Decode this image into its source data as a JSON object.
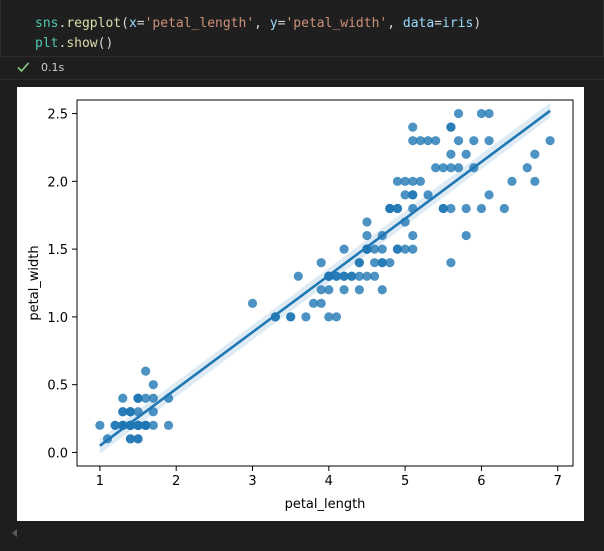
{
  "code_cell": {
    "line1": {
      "obj": "sns",
      "dot": ".",
      "fn": "regplot",
      "open": "(",
      "p1": "x",
      "eq1": "=",
      "v1": "'petal_length'",
      "sep1": ", ",
      "p2": "y",
      "eq2": "=",
      "v2": "'petal_width'",
      "sep2": ", ",
      "p3": "data",
      "eq3": "=",
      "v3": "iris",
      "close": ")"
    },
    "line2": {
      "obj": "plt",
      "dot": ".",
      "fn": "show",
      "call": "()"
    }
  },
  "status": {
    "icon": "check-icon",
    "exec_time": "0.1s",
    "success_color": "#89d185"
  },
  "chart_data": {
    "type": "scatter",
    "title": "",
    "xlabel": "petal_length",
    "ylabel": "petal_width",
    "xlim": [
      0.7,
      7.2
    ],
    "ylim": [
      -0.1,
      2.6
    ],
    "xticks": [
      1,
      2,
      3,
      4,
      5,
      6,
      7
    ],
    "yticks": [
      0.0,
      0.5,
      1.0,
      1.5,
      2.0,
      2.5
    ],
    "ytick_labels": [
      "0.0",
      "0.5",
      "1.0",
      "1.5",
      "2.0",
      "2.5"
    ],
    "grid": false,
    "point_color": "#1f77b4",
    "regression": {
      "x": [
        1.0,
        6.9
      ],
      "y": [
        0.05,
        2.52
      ]
    },
    "points": [
      [
        1.4,
        0.2
      ],
      [
        1.4,
        0.2
      ],
      [
        1.3,
        0.2
      ],
      [
        1.5,
        0.2
      ],
      [
        1.4,
        0.2
      ],
      [
        1.7,
        0.4
      ],
      [
        1.4,
        0.3
      ],
      [
        1.5,
        0.2
      ],
      [
        1.4,
        0.2
      ],
      [
        1.5,
        0.1
      ],
      [
        1.5,
        0.2
      ],
      [
        1.6,
        0.2
      ],
      [
        1.4,
        0.1
      ],
      [
        1.1,
        0.1
      ],
      [
        1.2,
        0.2
      ],
      [
        1.5,
        0.4
      ],
      [
        1.3,
        0.4
      ],
      [
        1.4,
        0.3
      ],
      [
        1.7,
        0.3
      ],
      [
        1.5,
        0.3
      ],
      [
        1.7,
        0.2
      ],
      [
        1.5,
        0.4
      ],
      [
        1.0,
        0.2
      ],
      [
        1.7,
        0.5
      ],
      [
        1.9,
        0.2
      ],
      [
        1.6,
        0.2
      ],
      [
        1.6,
        0.4
      ],
      [
        1.5,
        0.2
      ],
      [
        1.4,
        0.2
      ],
      [
        1.6,
        0.2
      ],
      [
        1.6,
        0.2
      ],
      [
        1.5,
        0.4
      ],
      [
        1.5,
        0.1
      ],
      [
        1.4,
        0.2
      ],
      [
        1.5,
        0.2
      ],
      [
        1.2,
        0.2
      ],
      [
        1.3,
        0.2
      ],
      [
        1.4,
        0.1
      ],
      [
        1.3,
        0.2
      ],
      [
        1.5,
        0.2
      ],
      [
        1.3,
        0.3
      ],
      [
        1.3,
        0.3
      ],
      [
        1.3,
        0.2
      ],
      [
        1.6,
        0.6
      ],
      [
        1.9,
        0.4
      ],
      [
        1.4,
        0.3
      ],
      [
        1.6,
        0.2
      ],
      [
        1.4,
        0.2
      ],
      [
        1.5,
        0.2
      ],
      [
        1.4,
        0.2
      ],
      [
        4.7,
        1.4
      ],
      [
        4.5,
        1.5
      ],
      [
        4.9,
        1.5
      ],
      [
        4.0,
        1.3
      ],
      [
        4.6,
        1.5
      ],
      [
        4.5,
        1.3
      ],
      [
        4.7,
        1.6
      ],
      [
        3.3,
        1.0
      ],
      [
        4.6,
        1.3
      ],
      [
        3.9,
        1.4
      ],
      [
        3.5,
        1.0
      ],
      [
        4.2,
        1.5
      ],
      [
        4.0,
        1.0
      ],
      [
        4.7,
        1.4
      ],
      [
        3.6,
        1.3
      ],
      [
        4.4,
        1.4
      ],
      [
        4.5,
        1.5
      ],
      [
        4.1,
        1.0
      ],
      [
        4.5,
        1.5
      ],
      [
        3.9,
        1.1
      ],
      [
        4.8,
        1.8
      ],
      [
        4.0,
        1.3
      ],
      [
        4.9,
        1.5
      ],
      [
        4.7,
        1.2
      ],
      [
        4.3,
        1.3
      ],
      [
        4.4,
        1.4
      ],
      [
        4.8,
        1.4
      ],
      [
        5.0,
        1.7
      ],
      [
        4.5,
        1.5
      ],
      [
        3.5,
        1.0
      ],
      [
        3.8,
        1.1
      ],
      [
        3.7,
        1.0
      ],
      [
        3.9,
        1.2
      ],
      [
        5.1,
        1.6
      ],
      [
        4.5,
        1.5
      ],
      [
        4.5,
        1.6
      ],
      [
        4.7,
        1.5
      ],
      [
        4.4,
        1.3
      ],
      [
        4.1,
        1.3
      ],
      [
        4.0,
        1.3
      ],
      [
        4.4,
        1.2
      ],
      [
        4.6,
        1.4
      ],
      [
        4.0,
        1.2
      ],
      [
        3.3,
        1.0
      ],
      [
        4.2,
        1.3
      ],
      [
        4.2,
        1.2
      ],
      [
        4.2,
        1.3
      ],
      [
        4.3,
        1.3
      ],
      [
        3.0,
        1.1
      ],
      [
        4.1,
        1.3
      ],
      [
        6.0,
        2.5
      ],
      [
        5.1,
        1.9
      ],
      [
        5.9,
        2.1
      ],
      [
        5.6,
        1.8
      ],
      [
        5.8,
        2.2
      ],
      [
        6.6,
        2.1
      ],
      [
        4.5,
        1.7
      ],
      [
        6.3,
        1.8
      ],
      [
        5.8,
        1.8
      ],
      [
        6.1,
        2.5
      ],
      [
        5.1,
        2.0
      ],
      [
        5.3,
        1.9
      ],
      [
        5.5,
        2.1
      ],
      [
        5.0,
        2.0
      ],
      [
        5.1,
        2.4
      ],
      [
        5.3,
        2.3
      ],
      [
        5.5,
        1.8
      ],
      [
        6.7,
        2.2
      ],
      [
        6.9,
        2.3
      ],
      [
        5.0,
        1.5
      ],
      [
        5.7,
        2.3
      ],
      [
        4.9,
        2.0
      ],
      [
        6.7,
        2.0
      ],
      [
        4.9,
        1.8
      ],
      [
        5.7,
        2.1
      ],
      [
        6.0,
        1.8
      ],
      [
        4.8,
        1.8
      ],
      [
        4.9,
        1.8
      ],
      [
        5.6,
        2.1
      ],
      [
        5.8,
        1.6
      ],
      [
        6.1,
        1.9
      ],
      [
        6.4,
        2.0
      ],
      [
        5.6,
        2.2
      ],
      [
        5.1,
        1.5
      ],
      [
        5.6,
        1.4
      ],
      [
        6.1,
        2.3
      ],
      [
        5.6,
        2.4
      ],
      [
        5.5,
        1.8
      ],
      [
        4.8,
        1.8
      ],
      [
        5.4,
        2.1
      ],
      [
        5.6,
        2.4
      ],
      [
        5.1,
        2.3
      ],
      [
        5.1,
        1.9
      ],
      [
        5.9,
        2.3
      ],
      [
        5.7,
        2.5
      ],
      [
        5.2,
        2.3
      ],
      [
        5.0,
        1.9
      ],
      [
        5.2,
        2.0
      ],
      [
        5.4,
        2.3
      ],
      [
        5.1,
        1.8
      ]
    ]
  }
}
